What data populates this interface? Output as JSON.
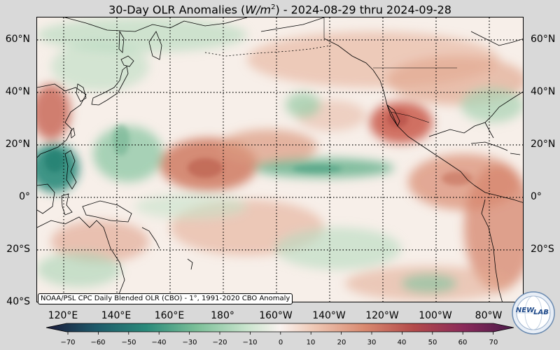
{
  "title": {
    "prefix": "30-Day OLR Anomalies (",
    "units_italic": "W/m",
    "units_sup": "2",
    "suffix": ") - 2024-08-29 thru 2024-09-28"
  },
  "credit": "NOAA/PSL CPC Daily Blended OLR (CBO) - 1°, 1991-2020 CBO Anomaly",
  "lat_labels": [
    "60°N",
    "40°N",
    "20°N",
    "0°",
    "20°S",
    "40°S"
  ],
  "lon_labels": [
    "120°E",
    "140°E",
    "160°E",
    "180°",
    "160°W",
    "140°W",
    "120°W",
    "100°W",
    "80°W"
  ],
  "colorbar": {
    "ticks": [
      "−70",
      "−60",
      "−50",
      "−40",
      "−30",
      "−20",
      "−10",
      "0",
      "10",
      "20",
      "30",
      "40",
      "50",
      "60",
      "70"
    ],
    "colors": {
      "-70": "#1a1a3a",
      "-55": "#1e5a6a",
      "-40": "#2a8a7a",
      "-25": "#7bbf98",
      "-10": "#c9e4cd",
      "0": "#f9f2ef",
      "10": "#efc9b6",
      "25": "#d98a70",
      "40": "#b34a4a",
      "55": "#8a2a5a",
      "70": "#4a1a4a"
    }
  },
  "logo": {
    "text_left": "NEW",
    "text_right": "LAB"
  },
  "colors": {
    "background": "#d9d9d9",
    "map_base": "#f7efe9",
    "positive_anomaly": "#d98a70",
    "negative_anomaly": "#7bbf98",
    "strong_negative": "#2a8a7a",
    "coastline": "#000000"
  }
}
